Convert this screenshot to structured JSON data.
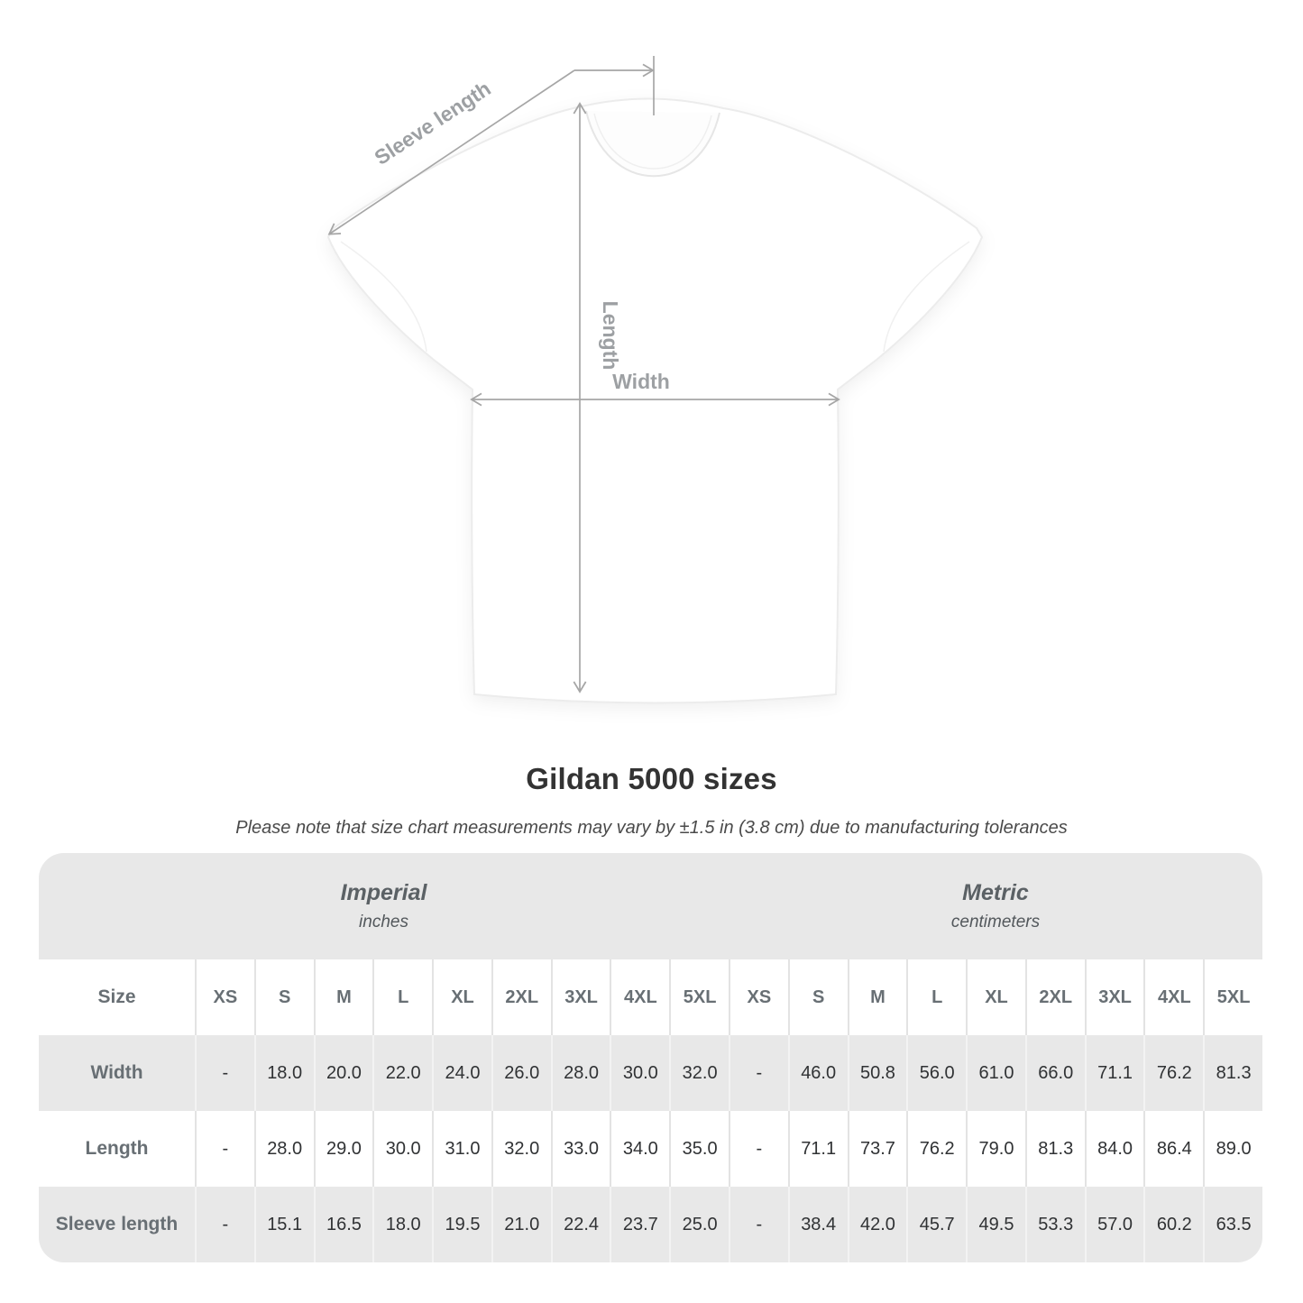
{
  "title": "Gildan 5000 sizes",
  "subtitle": "Please note that size chart measurements may vary by ±1.5 in (3.8 cm) due to manufacturing tolerances",
  "diagram": {
    "sleeve_label": "Sleeve length",
    "length_label": "Length",
    "width_label": "Width"
  },
  "colors": {
    "panel_gray": "#e8e8e8",
    "arrow_gray": "#a6a6a6",
    "diagram_label_gray": "#9da0a3",
    "header_text_gray": "#686f74",
    "value_text_dark": "#303234"
  },
  "table": {
    "sections": [
      {
        "label": "Imperial",
        "unit": "inches"
      },
      {
        "label": "Metric",
        "unit": "centimeters"
      }
    ],
    "size_header": "Size",
    "sizes": [
      "XS",
      "S",
      "M",
      "L",
      "XL",
      "2XL",
      "3XL",
      "4XL",
      "5XL"
    ],
    "rows": [
      {
        "label": "Width",
        "imperial": [
          "-",
          "18.0",
          "20.0",
          "22.0",
          "24.0",
          "26.0",
          "28.0",
          "30.0",
          "32.0"
        ],
        "metric": [
          "-",
          "46.0",
          "50.8",
          "56.0",
          "61.0",
          "66.0",
          "71.1",
          "76.2",
          "81.3"
        ]
      },
      {
        "label": "Length",
        "imperial": [
          "-",
          "28.0",
          "29.0",
          "30.0",
          "31.0",
          "32.0",
          "33.0",
          "34.0",
          "35.0"
        ],
        "metric": [
          "-",
          "71.1",
          "73.7",
          "76.2",
          "79.0",
          "81.3",
          "84.0",
          "86.4",
          "89.0"
        ]
      },
      {
        "label": "Sleeve length",
        "imperial": [
          "-",
          "15.1",
          "16.5",
          "18.0",
          "19.5",
          "21.0",
          "22.4",
          "23.7",
          "25.0"
        ],
        "metric": [
          "-",
          "38.4",
          "42.0",
          "45.7",
          "49.5",
          "53.3",
          "57.0",
          "60.2",
          "63.5"
        ]
      }
    ]
  }
}
